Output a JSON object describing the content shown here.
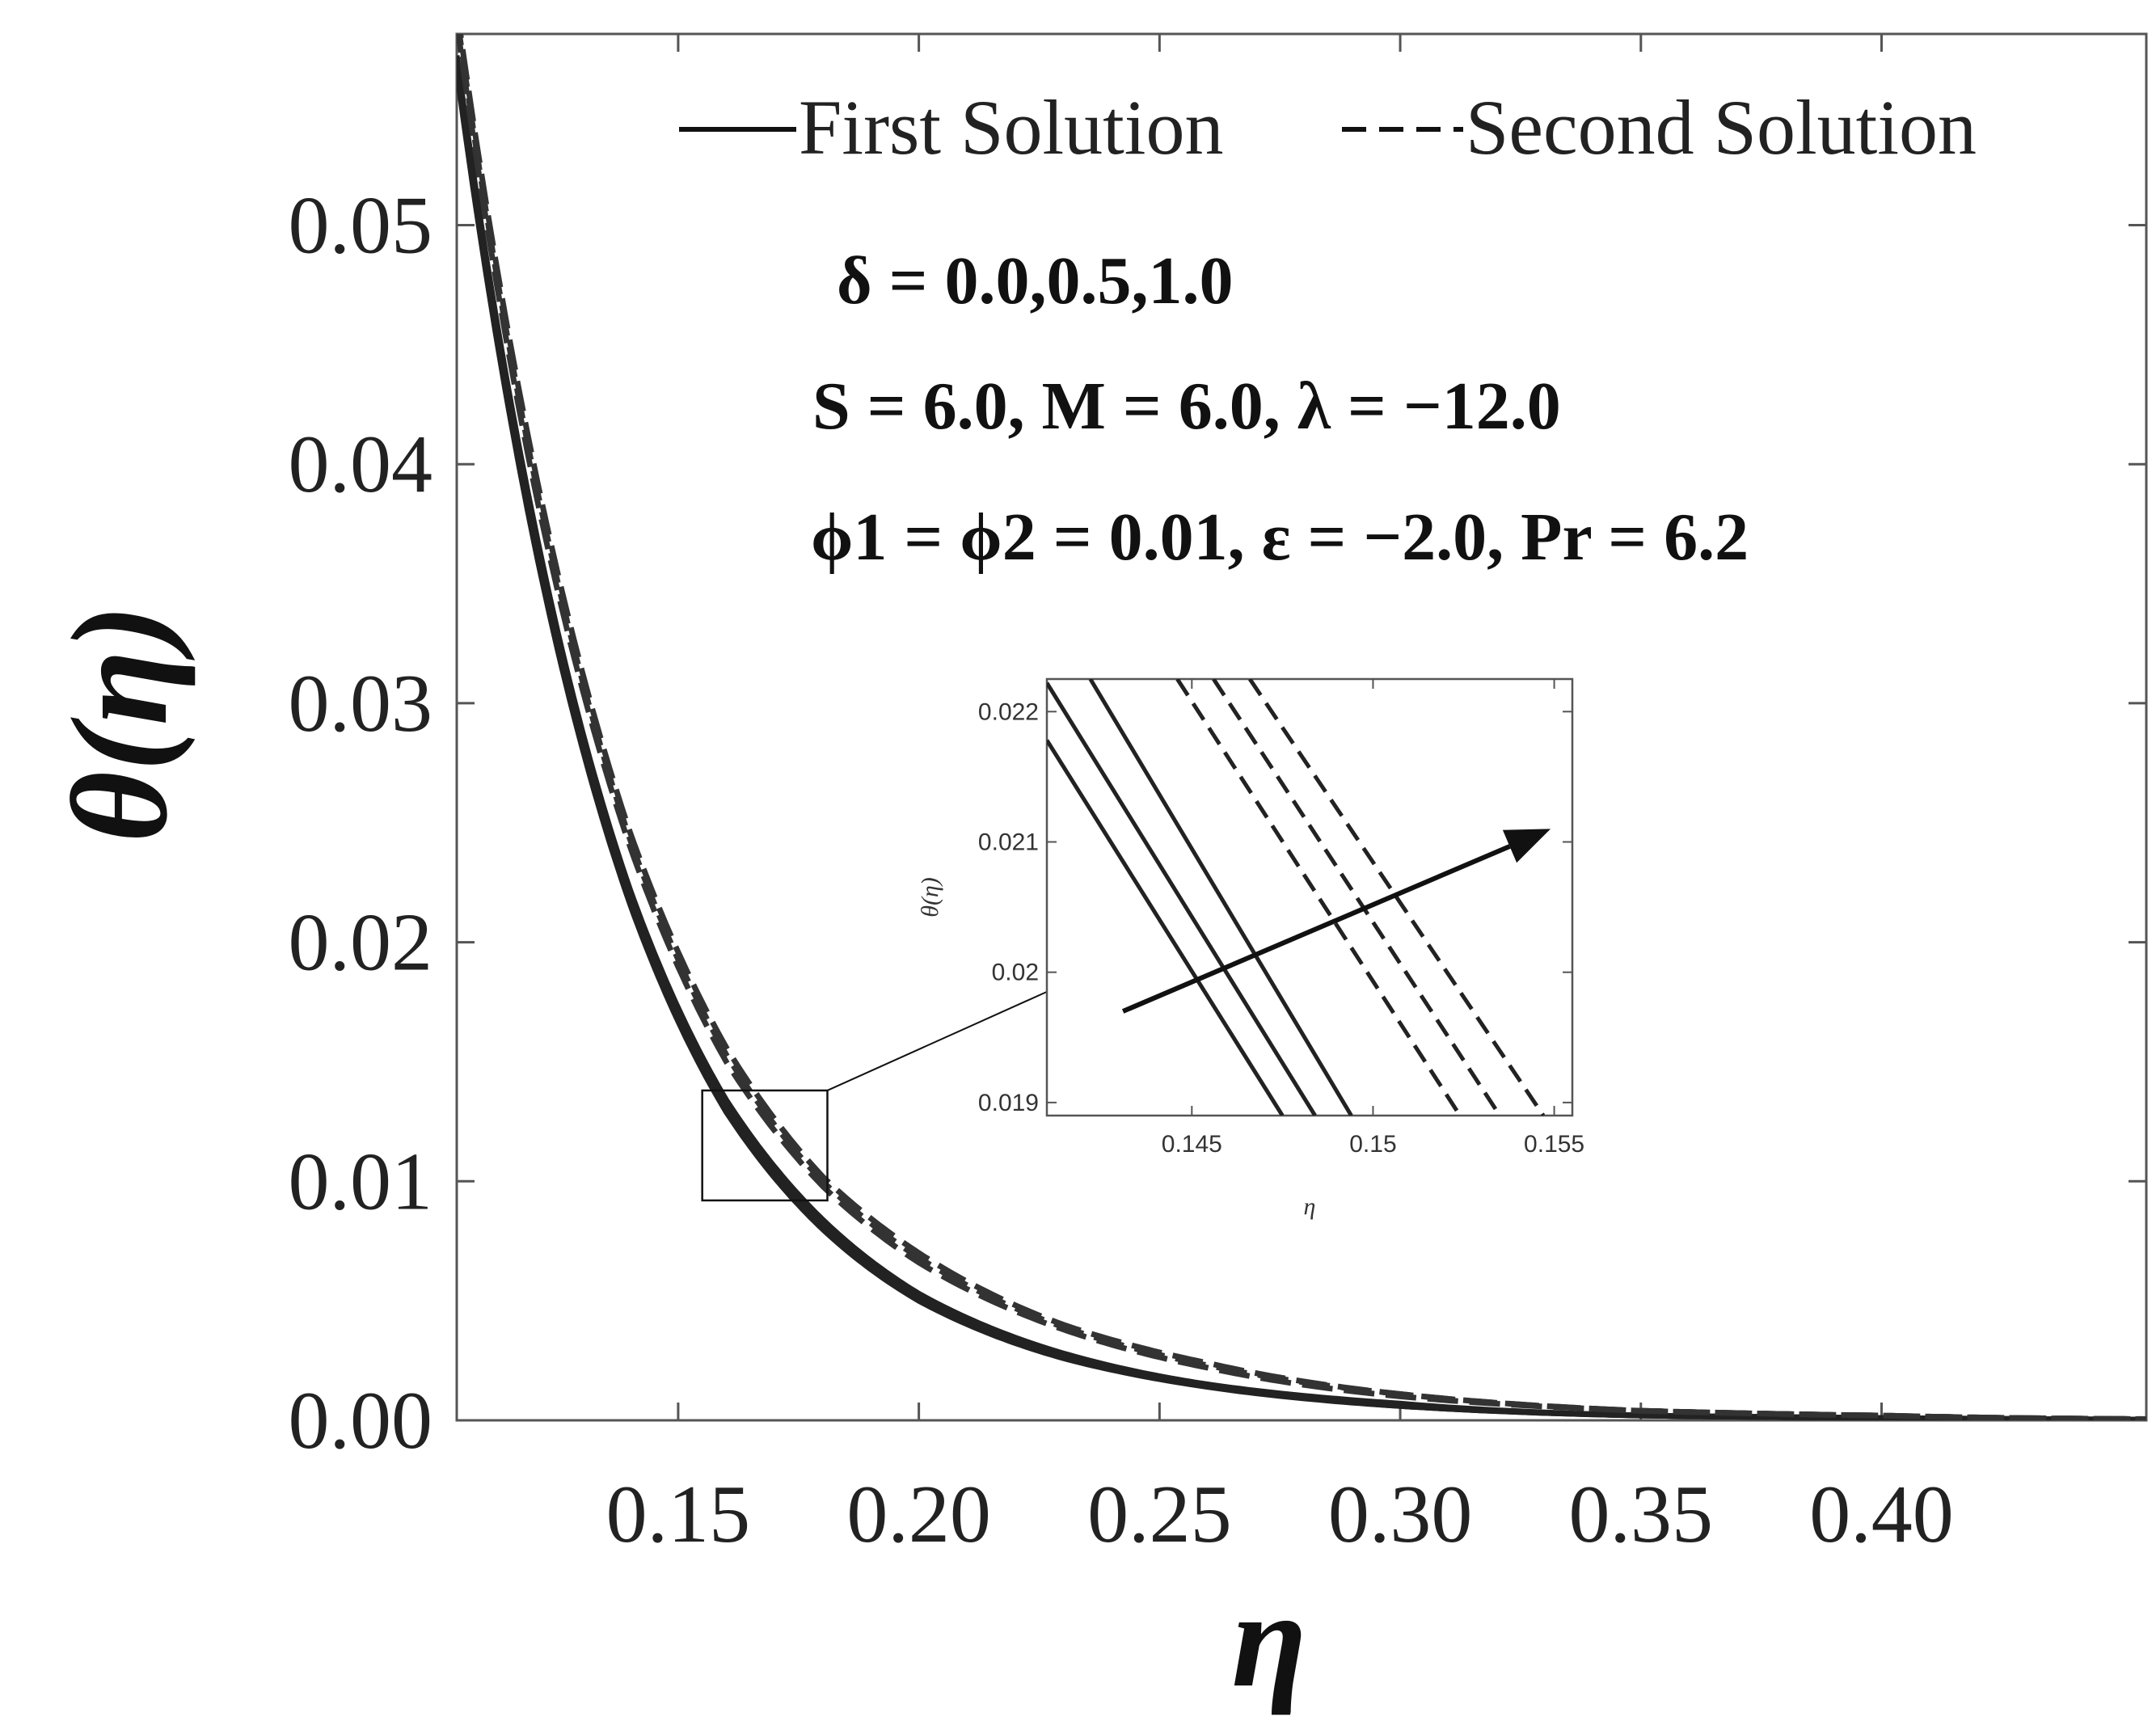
{
  "chart_data": {
    "type": "line",
    "title": "",
    "xlabel": "η",
    "ylabel": "θ(η)",
    "xlim": [
      0.104,
      0.455
    ],
    "ylim": [
      0.0,
      0.058
    ],
    "xticks": [
      "0.15",
      "0.20",
      "0.25",
      "0.30",
      "0.35",
      "0.40"
    ],
    "yticks": [
      "0.00",
      "0.01",
      "0.02",
      "0.03",
      "0.04",
      "0.05"
    ],
    "legend": {
      "placement": "top",
      "entries": [
        {
          "label": "First Solution",
          "style": "solid"
        },
        {
          "label": "Second Solution",
          "style": "dashed"
        }
      ]
    },
    "annotations": [
      "δ = 0.0,0.5,1.0",
      "S = 6.0, M = 6.0, λ = −12.0",
      "ϕ1 = ϕ2 = 0.01, ε = −2.0, Pr = 6.2"
    ],
    "series": [
      {
        "style": "solid",
        "group": "first",
        "delta": 0.0,
        "x": [
          0.104,
          0.12,
          0.14,
          0.16,
          0.18,
          0.2,
          0.23,
          0.26,
          0.3,
          0.35,
          0.4,
          0.455
        ],
        "y": [
          0.0565,
          0.0368,
          0.0216,
          0.0129,
          0.008,
          0.005,
          0.0026,
          0.0014,
          0.0006,
          0.0002,
          0.0001,
          3e-05
        ]
      },
      {
        "style": "solid",
        "group": "first",
        "delta": 0.5,
        "x": [
          0.104,
          0.12,
          0.14,
          0.16,
          0.18,
          0.2,
          0.23,
          0.26,
          0.3,
          0.35,
          0.4,
          0.455
        ],
        "y": [
          0.0568,
          0.0372,
          0.0219,
          0.0131,
          0.0082,
          0.0051,
          0.0027,
          0.0015,
          0.0006,
          0.0002,
          0.0001,
          3e-05
        ]
      },
      {
        "style": "solid",
        "group": "first",
        "delta": 1.0,
        "x": [
          0.104,
          0.12,
          0.14,
          0.16,
          0.18,
          0.2,
          0.23,
          0.26,
          0.3,
          0.35,
          0.4,
          0.455
        ],
        "y": [
          0.0571,
          0.0376,
          0.0222,
          0.0134,
          0.0084,
          0.0053,
          0.0028,
          0.0015,
          0.0007,
          0.0002,
          0.0001,
          3e-05
        ]
      },
      {
        "style": "dashed",
        "group": "second",
        "delta": 0.0,
        "x": [
          0.104,
          0.12,
          0.14,
          0.16,
          0.18,
          0.2,
          0.23,
          0.26,
          0.3,
          0.35,
          0.4,
          0.455
        ],
        "y": [
          0.0585,
          0.0392,
          0.024,
          0.015,
          0.0098,
          0.0066,
          0.0038,
          0.0022,
          0.001,
          0.0004,
          0.0002,
          5e-05
        ]
      },
      {
        "style": "dashed",
        "group": "second",
        "delta": 0.5,
        "x": [
          0.104,
          0.12,
          0.14,
          0.16,
          0.18,
          0.2,
          0.23,
          0.26,
          0.3,
          0.35,
          0.4,
          0.455
        ],
        "y": [
          0.0588,
          0.0396,
          0.0243,
          0.0153,
          0.01,
          0.0068,
          0.0039,
          0.0023,
          0.0011,
          0.0004,
          0.0002,
          5e-05
        ]
      },
      {
        "style": "dashed",
        "group": "second",
        "delta": 1.0,
        "x": [
          0.104,
          0.12,
          0.14,
          0.16,
          0.18,
          0.2,
          0.23,
          0.26,
          0.3,
          0.35,
          0.4,
          0.455
        ],
        "y": [
          0.0591,
          0.04,
          0.0246,
          0.0156,
          0.0102,
          0.007,
          0.004,
          0.0024,
          0.0011,
          0.0004,
          0.0002,
          5e-05
        ]
      }
    ],
    "zoom_box": {
      "xlim": [
        0.155,
        0.181
      ],
      "ylim": [
        0.0092,
        0.0138
      ]
    },
    "inset": {
      "xlabel": "η",
      "ylabel": "θ(η)",
      "xlim": [
        0.141,
        0.1555
      ],
      "ylim": [
        0.0189,
        0.02225
      ],
      "xticks": [
        "0.145",
        "0.15",
        "0.155"
      ],
      "yticks": [
        "0.019",
        "0.02",
        "0.021",
        "0.022"
      ],
      "series": [
        {
          "style": "solid",
          "delta": 0.0,
          "x": [
            0.141,
            0.1475
          ],
          "y": [
            0.02178,
            0.0189
          ]
        },
        {
          "style": "solid",
          "delta": 0.5,
          "x": [
            0.141,
            0.1484
          ],
          "y": [
            0.02222,
            0.0189
          ]
        },
        {
          "style": "solid",
          "delta": 1.0,
          "x": [
            0.1422,
            0.1494
          ],
          "y": [
            0.02225,
            0.0189
          ]
        },
        {
          "style": "dashed",
          "delta": 0.0,
          "x": [
            0.1446,
            0.1524
          ],
          "y": [
            0.02225,
            0.0189
          ]
        },
        {
          "style": "dashed",
          "delta": 0.5,
          "x": [
            0.1456,
            0.1535
          ],
          "y": [
            0.02225,
            0.0189
          ]
        },
        {
          "style": "dashed",
          "delta": 1.0,
          "x": [
            0.1466,
            0.1547
          ],
          "y": [
            0.02225,
            0.0189
          ]
        }
      ],
      "arrow": {
        "from": [
          0.1431,
          0.0197
        ],
        "to": [
          0.1549,
          0.0211
        ],
        "meaning": "increasing δ"
      }
    }
  }
}
